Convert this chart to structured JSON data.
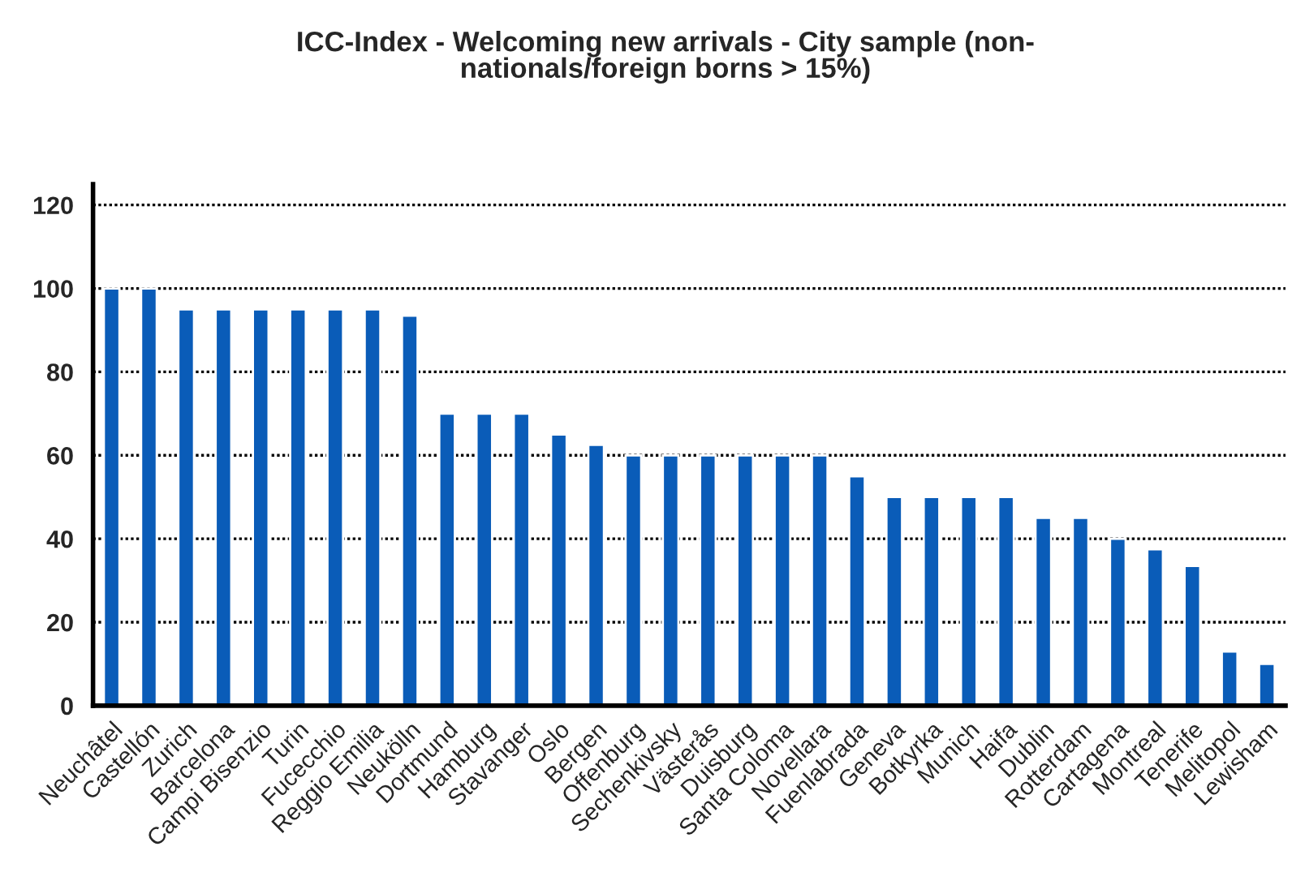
{
  "chart_data": {
    "type": "bar",
    "title": "ICC-Index - Welcoming new arrivals - City sample (non-\nnationals/foreign borns > 15%)",
    "categories": [
      "Neuchâtel",
      "Castellón",
      "Zurich",
      "Barcelona",
      "Campi Bisenzio",
      "Turin",
      "Fucecchio",
      "Reggio Emilia",
      "Neukölln",
      "Dortmund",
      "Hamburg",
      "Stavanger",
      "Oslo",
      "Bergen",
      "Offenburg",
      "Sechenkivsky",
      "Västerås",
      "Duisburg",
      "Santa Coloma",
      "Novellara",
      "Fuenlabrada",
      "Geneva",
      "Botkyrka",
      "Munich",
      "Haifa",
      "Dublin",
      "Rotterdam",
      "Cartagena",
      "Montreal",
      "Tenerife",
      "Melitopol",
      "Lewisham"
    ],
    "values": [
      100,
      100,
      95,
      95,
      95,
      95,
      95,
      95,
      93.5,
      70,
      70,
      70,
      65,
      62.5,
      60,
      60,
      60,
      60,
      60,
      60,
      55,
      50,
      50,
      50,
      50,
      45,
      45,
      40,
      37.5,
      33.5,
      13,
      10
    ],
    "color": "#0a5cb8",
    "ylim": [
      0,
      125
    ],
    "yticks": [
      0,
      20,
      40,
      60,
      80,
      100,
      120
    ],
    "grid": "y",
    "legend": false
  }
}
